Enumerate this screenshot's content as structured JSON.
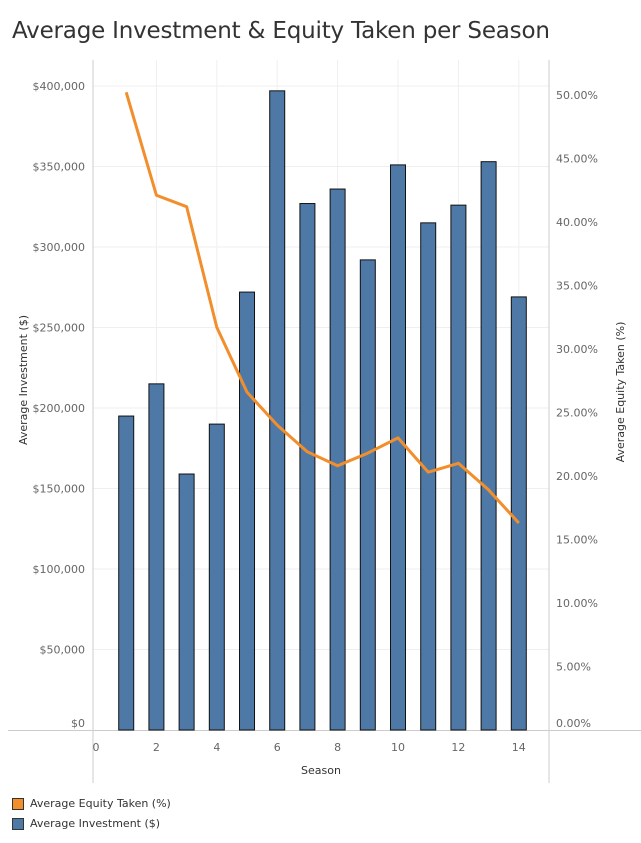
{
  "chart_data": {
    "type": "bar+line",
    "title": "Average Investment & Equity Taken per Season",
    "xlabel": "Season",
    "ylabel_left": "Average Investment ($)",
    "ylabel_right": "Average Equity Taken (%)",
    "x_ticks": [
      "0",
      "2",
      "4",
      "6",
      "8",
      "10",
      "12",
      "14"
    ],
    "x_tick_values": [
      0,
      2,
      4,
      6,
      8,
      10,
      12,
      14
    ],
    "xlim": [
      -0.1,
      15
    ],
    "y_left_ticks": [
      "$0",
      "$50,000",
      "$100,000",
      "$150,000",
      "$200,000",
      "$250,000",
      "$300,000",
      "$350,000",
      "$400,000"
    ],
    "y_left_tick_values": [
      0,
      50000,
      100000,
      150000,
      200000,
      250000,
      300000,
      350000,
      400000
    ],
    "ylim_left": [
      0,
      400000
    ],
    "y_right_ticks": [
      "0.00%",
      "5.00%",
      "10.00%",
      "15.00%",
      "20.00%",
      "25.00%",
      "30.00%",
      "35.00%",
      "40.00%",
      "45.00%",
      "50.00%"
    ],
    "y_right_tick_values": [
      0,
      5,
      10,
      15,
      20,
      25,
      30,
      35,
      40,
      45,
      50
    ],
    "ylim_right": [
      0,
      50.7
    ],
    "grid": true,
    "legend_placement": "bottom-left",
    "x": [
      1,
      2,
      3,
      4,
      5,
      6,
      7,
      8,
      9,
      10,
      11,
      12,
      13,
      14
    ],
    "series": [
      {
        "name": "Average Investment ($)",
        "kind": "bar",
        "axis": "left",
        "color": "#4e79a7",
        "values": [
          195000,
          215000,
          159000,
          190000,
          272000,
          397000,
          327000,
          336000,
          292000,
          351000,
          315000,
          326000,
          353000,
          269000
        ]
      },
      {
        "name": "Average Equity Taken (%)",
        "kind": "line",
        "axis": "right",
        "color": "#f28e2b",
        "values": [
          50.2,
          42.1,
          41.2,
          31.7,
          26.6,
          24.0,
          21.9,
          20.8,
          21.8,
          23.0,
          20.3,
          21.0,
          18.9,
          16.3
        ]
      }
    ]
  },
  "legend": [
    {
      "label": "Average Equity Taken (%)",
      "color": "#f28e2b"
    },
    {
      "label": "Average Investment ($)",
      "color": "#4e79a7"
    }
  ]
}
